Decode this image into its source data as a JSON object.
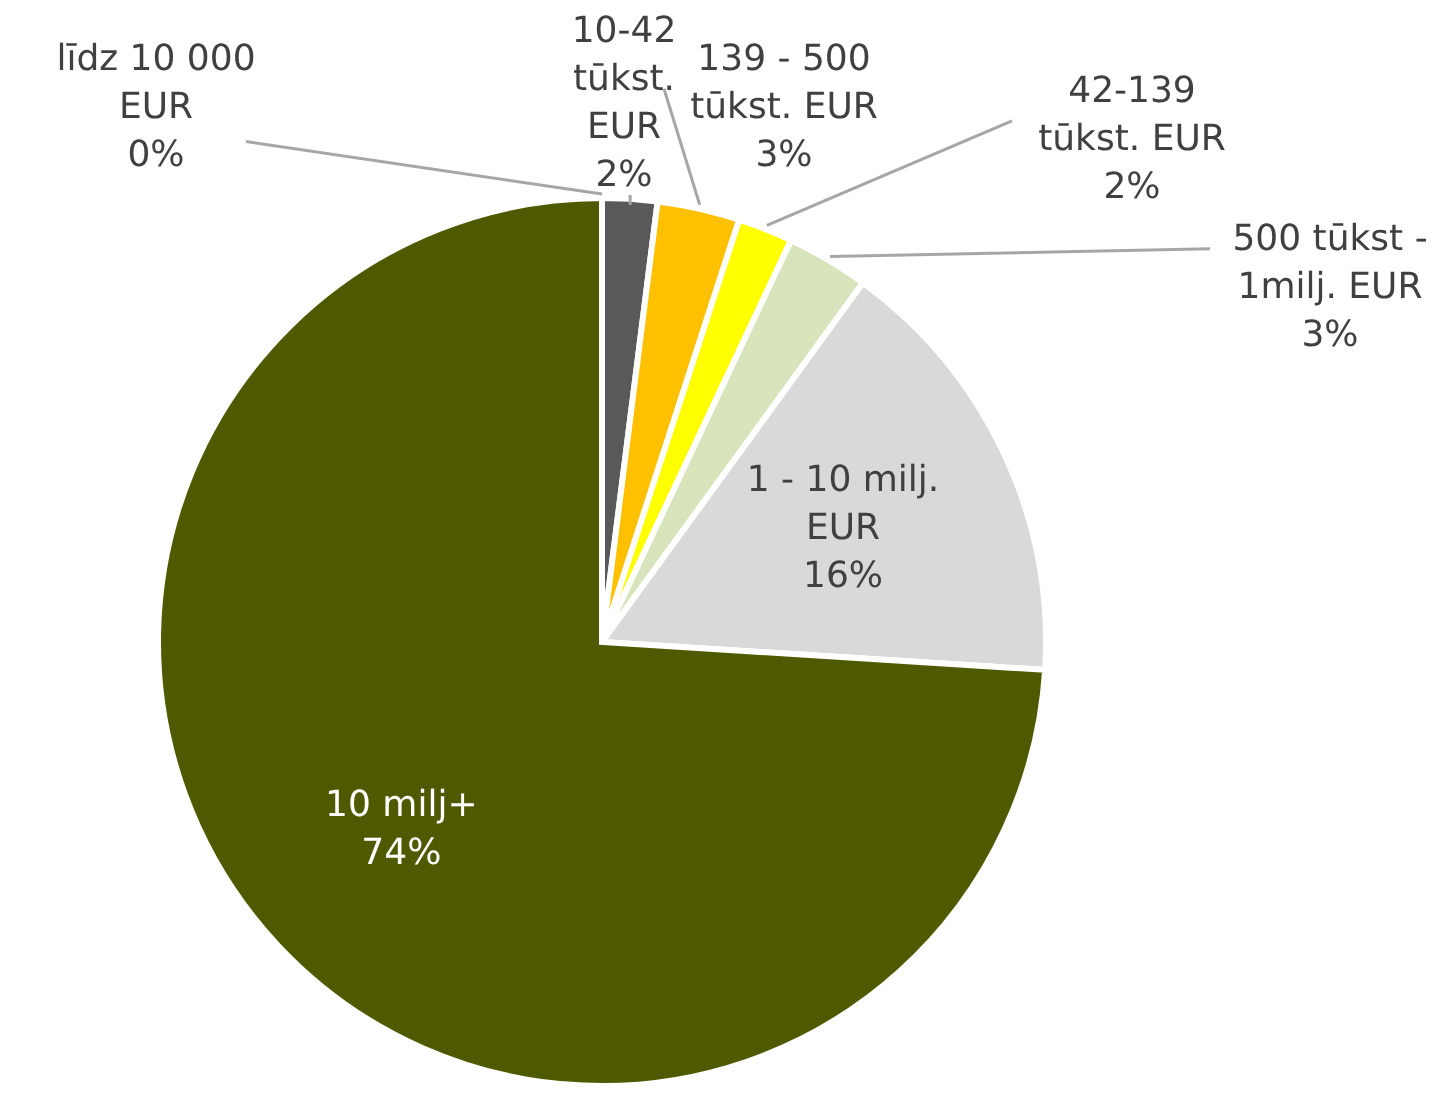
{
  "chart_data": {
    "type": "pie",
    "categories": [
      "līdz 10 000 EUR",
      "10-42 tūkst. EUR",
      "139 - 500 tūkst. EUR",
      "42-139 tūkst. EUR",
      "500 tūkst - 1milj. EUR",
      "1 - 10 milj. EUR",
      "10 milj+"
    ],
    "values": [
      0,
      2,
      3,
      2,
      3,
      16,
      74
    ],
    "value_labels": [
      "0%",
      "2%",
      "3%",
      "2%",
      "3%",
      "16%",
      "74%"
    ],
    "colors": [
      "#2f2f2f",
      "#595959",
      "#ffc000",
      "#ffff00",
      "#d8e4bc",
      "#d9d9d9",
      "#4f5a00"
    ]
  }
}
